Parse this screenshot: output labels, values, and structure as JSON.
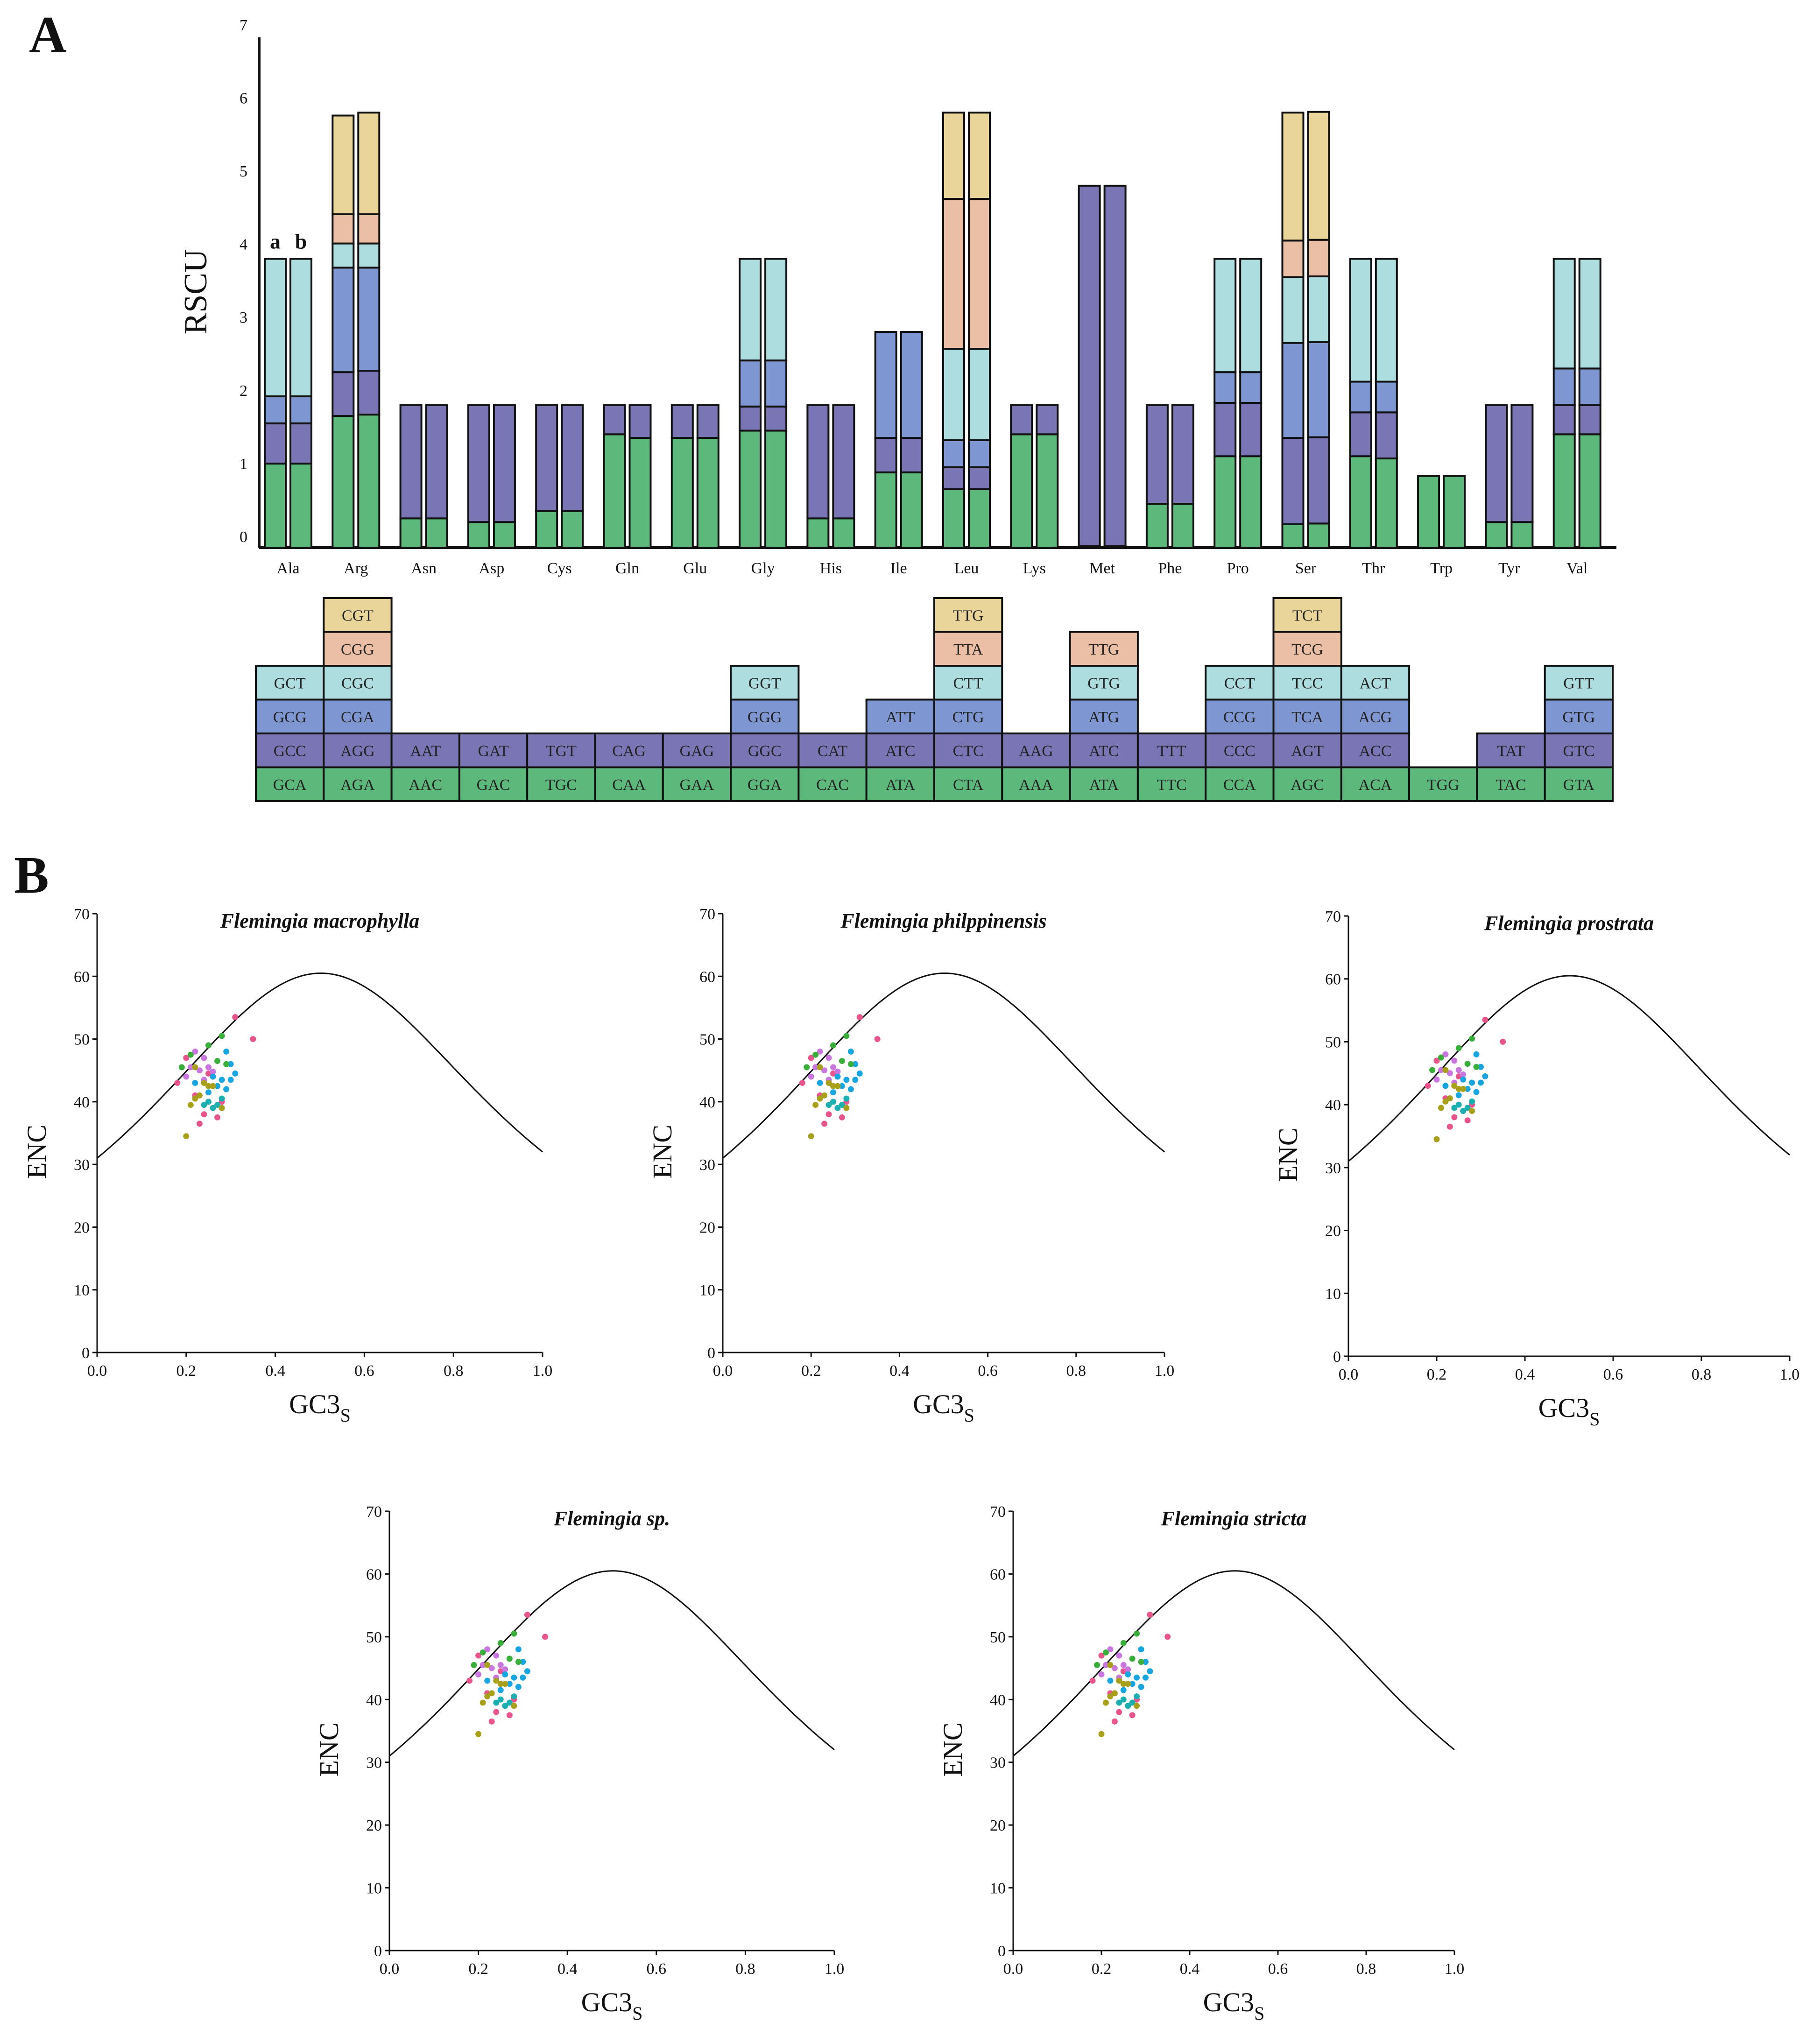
{
  "panels": {
    "a": "A",
    "b": "B"
  },
  "colors": {
    "green": "#5DB97B",
    "purple": "#7A76B6",
    "blue": "#7E97D2",
    "cyan": "#AEDDE0",
    "salmon": "#EBBFA6",
    "yellow": "#E9D59A",
    "bar_stroke": "#111111"
  },
  "chart_data": [
    {
      "type": "bar",
      "stacked": true,
      "grouped_pairs": true,
      "title": "",
      "ylabel": "RSCU",
      "xlabel": "",
      "ylim": [
        0,
        7
      ],
      "yticks": [
        0,
        1,
        2,
        3,
        4,
        5,
        6,
        7
      ],
      "pair_labels": [
        "a",
        "b"
      ],
      "categories": [
        "Ala",
        "Arg",
        "Asn",
        "Asp",
        "Cys",
        "Gln",
        "Glu",
        "Gly",
        "His",
        "Ile",
        "Leu",
        "Lys",
        "Met",
        "Phe",
        "Pro",
        "Ser",
        "Thr",
        "Trp",
        "Tyr",
        "Val"
      ],
      "stack_colors": [
        "green",
        "purple",
        "blue",
        "cyan",
        "salmon",
        "yellow"
      ],
      "segments_a": [
        [
          1.15,
          0.55,
          0.37,
          1.88
        ],
        [
          1.8,
          0.6,
          1.43,
          0.33,
          0.4,
          1.35
        ],
        [
          0.4,
          1.55
        ],
        [
          0.35,
          1.6
        ],
        [
          0.5,
          1.45
        ],
        [
          1.55,
          0.4
        ],
        [
          1.5,
          0.45
        ],
        [
          1.6,
          0.33,
          0.63,
          1.39
        ],
        [
          0.4,
          1.55
        ],
        [
          1.03,
          0.47,
          1.45
        ],
        [
          0.8,
          0.3,
          0.37,
          1.25,
          2.05,
          1.18
        ],
        [
          1.55,
          0.4
        ],
        [
          0.02,
          4.93
        ],
        [
          0.6,
          1.35
        ],
        [
          1.25,
          0.73,
          0.42,
          1.55
        ],
        [
          0.32,
          1.18,
          1.3,
          0.9,
          0.5,
          1.75
        ],
        [
          1.25,
          0.6,
          0.42,
          1.68
        ],
        [
          0.98
        ],
        [
          0.35,
          1.6
        ],
        [
          1.55,
          0.4,
          0.5,
          1.5
        ]
      ],
      "segments_b": [
        [
          1.15,
          0.55,
          0.37,
          1.88
        ],
        [
          1.82,
          0.6,
          1.41,
          0.33,
          0.4,
          1.39
        ],
        [
          0.4,
          1.55
        ],
        [
          0.35,
          1.6
        ],
        [
          0.5,
          1.45
        ],
        [
          1.5,
          0.45
        ],
        [
          1.5,
          0.45
        ],
        [
          1.6,
          0.33,
          0.63,
          1.39
        ],
        [
          0.4,
          1.55
        ],
        [
          1.03,
          0.47,
          1.45
        ],
        [
          0.8,
          0.3,
          0.37,
          1.25,
          2.05,
          1.18
        ],
        [
          1.55,
          0.4
        ],
        [
          0.02,
          4.93
        ],
        [
          0.6,
          1.35
        ],
        [
          1.25,
          0.73,
          0.42,
          1.55
        ],
        [
          0.33,
          1.18,
          1.3,
          0.9,
          0.5,
          1.75
        ],
        [
          1.22,
          0.63,
          0.42,
          1.68
        ],
        [
          0.98
        ],
        [
          0.35,
          1.6
        ],
        [
          1.55,
          0.4,
          0.5,
          1.5
        ]
      ],
      "codon_table": [
        [
          "GCA",
          "GCC",
          "GCG",
          "GCT"
        ],
        [
          "AGA",
          "AGG",
          "CGA",
          "CGC",
          "CGG",
          "CGT"
        ],
        [
          "AAC",
          "AAT"
        ],
        [
          "GAC",
          "GAT"
        ],
        [
          "TGC",
          "TGT"
        ],
        [
          "CAA",
          "CAG"
        ],
        [
          "GAA",
          "GAG"
        ],
        [
          "GGA",
          "GGC",
          "GGG",
          "GGT"
        ],
        [
          "CAC",
          "CAT"
        ],
        [
          "ATA",
          "ATC",
          "ATT"
        ],
        [
          "CTA",
          "CTC",
          "CTG",
          "CTT",
          "TTA",
          "TTG"
        ],
        [
          "AAA",
          "AAG"
        ],
        [
          "ATA",
          "ATC",
          "ATG",
          "GTG",
          "TTG"
        ],
        [
          "TTC",
          "TTT"
        ],
        [
          "CCA",
          "CCC",
          "CCG",
          "CCT"
        ],
        [
          "AGC",
          "AGT",
          "TCA",
          "TCC",
          "TCG",
          "TCT"
        ],
        [
          "ACA",
          "ACC",
          "ACG",
          "ACT"
        ],
        [
          "TGG"
        ],
        [
          "TAC",
          "TAT"
        ],
        [
          "GTA",
          "GTC",
          "GTG",
          "GTT"
        ]
      ],
      "codon_row_colors": {
        "default": [
          "green",
          "purple",
          "blue",
          "cyan",
          "salmon",
          "yellow"
        ],
        "Met": [
          "green",
          "purple",
          "blue",
          "cyan",
          "salmon"
        ]
      }
    },
    {
      "type": "scatter",
      "layout": "small-multiples",
      "xlabel": "GC3",
      "xlabel_sub": "S",
      "ylabel": "ENC",
      "xlim": [
        0.0,
        1.0
      ],
      "ylim": [
        0,
        70
      ],
      "xticks": [
        "0.0",
        "0.2",
        "0.4",
        "0.6",
        "0.8",
        "1.0"
      ],
      "yticks": [
        "0",
        "10",
        "20",
        "30",
        "40",
        "50",
        "60",
        "70"
      ],
      "expected_curve": "ENC = 2 + GC3s + 29 / (GC3s^2 + (1 - GC3s)^2)",
      "panels": [
        {
          "title": "Flemingia macrophylla"
        },
        {
          "title": "Flemingia philppinensis"
        },
        {
          "title": "Flemingia prostrata"
        },
        {
          "title": "Flemingia sp."
        },
        {
          "title": "Flemingia stricta"
        }
      ],
      "point_colors": [
        "#E8548C",
        "#C977DF",
        "#19A6E0",
        "#1DAFAF",
        "#3AAE3A",
        "#A8A01A"
      ],
      "points": [
        {
          "x": 0.31,
          "y": 53.5,
          "c": 0
        },
        {
          "x": 0.35,
          "y": 50.0,
          "c": 0
        },
        {
          "x": 0.2,
          "y": 47.0,
          "c": 0
        },
        {
          "x": 0.18,
          "y": 43.0,
          "c": 0
        },
        {
          "x": 0.22,
          "y": 41.0,
          "c": 0
        },
        {
          "x": 0.24,
          "y": 38.0,
          "c": 0
        },
        {
          "x": 0.27,
          "y": 37.5,
          "c": 0
        },
        {
          "x": 0.23,
          "y": 36.5,
          "c": 0
        },
        {
          "x": 0.28,
          "y": 40.0,
          "c": 0
        },
        {
          "x": 0.25,
          "y": 44.5,
          "c": 0
        },
        {
          "x": 0.22,
          "y": 48.0,
          "c": 1
        },
        {
          "x": 0.24,
          "y": 47.0,
          "c": 1
        },
        {
          "x": 0.21,
          "y": 45.5,
          "c": 1
        },
        {
          "x": 0.23,
          "y": 45.0,
          "c": 1
        },
        {
          "x": 0.25,
          "y": 45.5,
          "c": 1
        },
        {
          "x": 0.26,
          "y": 44.8,
          "c": 1
        },
        {
          "x": 0.2,
          "y": 44.0,
          "c": 1
        },
        {
          "x": 0.24,
          "y": 43.5,
          "c": 1
        },
        {
          "x": 0.29,
          "y": 48.0,
          "c": 2
        },
        {
          "x": 0.3,
          "y": 46.0,
          "c": 2
        },
        {
          "x": 0.31,
          "y": 44.5,
          "c": 2
        },
        {
          "x": 0.28,
          "y": 43.5,
          "c": 2
        },
        {
          "x": 0.27,
          "y": 42.5,
          "c": 2
        },
        {
          "x": 0.29,
          "y": 42.0,
          "c": 2
        },
        {
          "x": 0.25,
          "y": 41.5,
          "c": 2
        },
        {
          "x": 0.26,
          "y": 44.0,
          "c": 2
        },
        {
          "x": 0.22,
          "y": 43.0,
          "c": 2
        },
        {
          "x": 0.3,
          "y": 43.5,
          "c": 2
        },
        {
          "x": 0.24,
          "y": 39.5,
          "c": 3
        },
        {
          "x": 0.26,
          "y": 39.0,
          "c": 3
        },
        {
          "x": 0.28,
          "y": 40.5,
          "c": 3
        },
        {
          "x": 0.27,
          "y": 39.5,
          "c": 3
        },
        {
          "x": 0.25,
          "y": 40.0,
          "c": 3
        },
        {
          "x": 0.19,
          "y": 45.5,
          "c": 4
        },
        {
          "x": 0.21,
          "y": 47.5,
          "c": 4
        },
        {
          "x": 0.25,
          "y": 49.0,
          "c": 4
        },
        {
          "x": 0.28,
          "y": 50.5,
          "c": 4
        },
        {
          "x": 0.27,
          "y": 46.5,
          "c": 4
        },
        {
          "x": 0.29,
          "y": 46.0,
          "c": 4
        },
        {
          "x": 0.2,
          "y": 34.5,
          "c": 5
        },
        {
          "x": 0.22,
          "y": 40.5,
          "c": 5
        },
        {
          "x": 0.21,
          "y": 39.5,
          "c": 5
        },
        {
          "x": 0.24,
          "y": 43.0,
          "c": 5
        },
        {
          "x": 0.25,
          "y": 42.5,
          "c": 5
        },
        {
          "x": 0.23,
          "y": 41.0,
          "c": 5
        },
        {
          "x": 0.26,
          "y": 42.5,
          "c": 5
        },
        {
          "x": 0.28,
          "y": 39.0,
          "c": 5
        },
        {
          "x": 0.22,
          "y": 45.5,
          "c": 5
        }
      ]
    }
  ]
}
